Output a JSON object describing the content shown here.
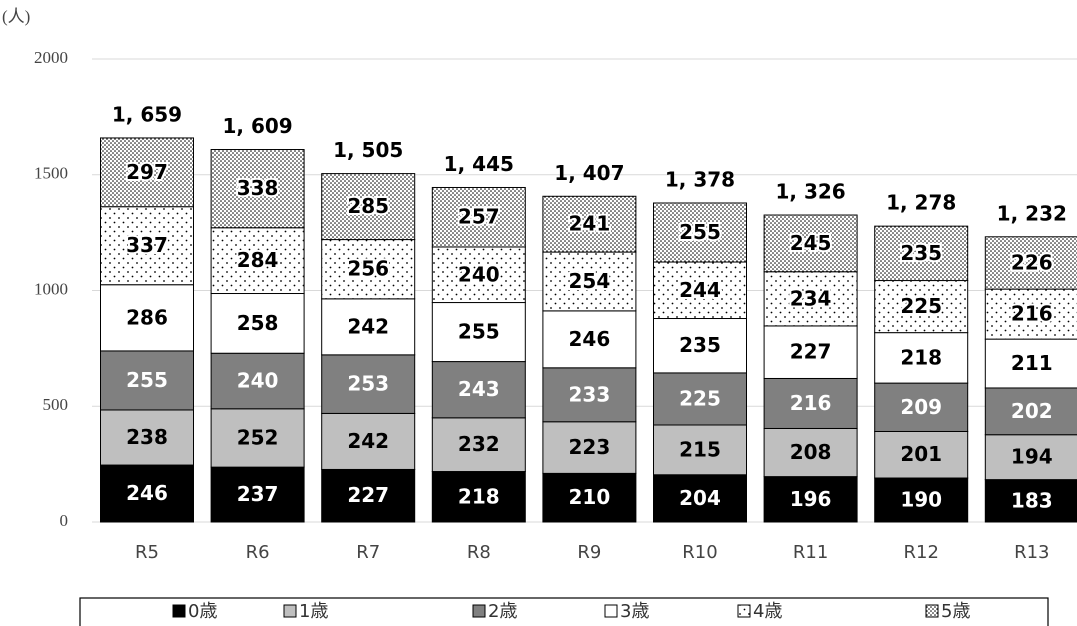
{
  "chart_data": {
    "type": "stacked-bar",
    "y_label": "(人)",
    "categories": [
      "R5",
      "R6",
      "R7",
      "R8",
      "R9",
      "R10",
      "R11",
      "R12",
      "R13"
    ],
    "series": [
      {
        "name": "0歳",
        "color": "#000000",
        "values": [
          246,
          237,
          227,
          218,
          210,
          204,
          196,
          190,
          183
        ]
      },
      {
        "name": "1歳",
        "color": "#bfbfbf",
        "values": [
          238,
          252,
          242,
          232,
          223,
          215,
          208,
          201,
          194
        ]
      },
      {
        "name": "2歳",
        "color": "#808080",
        "values": [
          255,
          240,
          253,
          243,
          233,
          225,
          216,
          209,
          202
        ]
      },
      {
        "name": "3歳",
        "color": "#ffffff",
        "values": [
          286,
          258,
          242,
          255,
          246,
          235,
          227,
          218,
          211
        ]
      },
      {
        "name": "4歳",
        "color": "#ffffff",
        "pattern": "sparse-dots",
        "values": [
          337,
          284,
          256,
          240,
          254,
          244,
          234,
          225,
          216
        ]
      },
      {
        "name": "5歳",
        "color": "#ffffff",
        "pattern": "dense-dots",
        "values": [
          297,
          338,
          285,
          257,
          241,
          255,
          245,
          235,
          226
        ]
      }
    ],
    "totals": {
      "values": [
        1659,
        1609,
        1505,
        1445,
        1407,
        1378,
        1326,
        1278,
        1232
      ],
      "value_labels": [
        "1, 659",
        "1, 609",
        "1, 505",
        "1, 445",
        "1, 407",
        "1, 378",
        "1, 326",
        "1, 278",
        "1, 232"
      ]
    },
    "ylim": [
      0,
      2000
    ],
    "yticks": [
      0,
      500,
      1000,
      1500,
      2000
    ],
    "grid": true,
    "legend": "bottom"
  }
}
